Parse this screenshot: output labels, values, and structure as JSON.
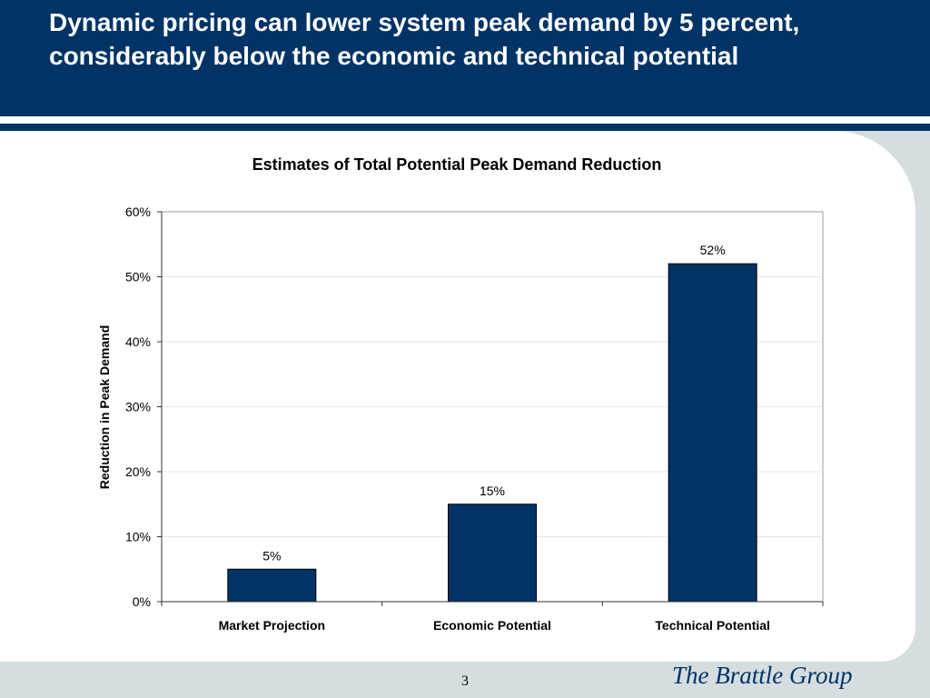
{
  "slide": {
    "title": "Dynamic pricing can lower system peak demand by 5 percent, considerably below the economic and technical potential",
    "page_number": "3",
    "brand": "The Brattle Group"
  },
  "colors": {
    "header_navy": "#003366",
    "bar_fill": "#003366",
    "background": "#d5dde0"
  },
  "chart_data": {
    "type": "bar",
    "title": "Estimates of Total Potential Peak Demand Reduction",
    "xlabel": "",
    "ylabel": "Reduction in Peak Demand",
    "categories": [
      "Market Projection",
      "Economic Potential",
      "Technical Potential"
    ],
    "values": [
      5,
      15,
      52
    ],
    "data_labels": [
      "5%",
      "15%",
      "52%"
    ],
    "ylim": [
      0,
      60
    ],
    "yticks": [
      0,
      10,
      20,
      30,
      40,
      50,
      60
    ],
    "ytick_labels": [
      "0%",
      "10%",
      "20%",
      "30%",
      "40%",
      "50%",
      "60%"
    ],
    "grid": true,
    "legend": "none"
  }
}
